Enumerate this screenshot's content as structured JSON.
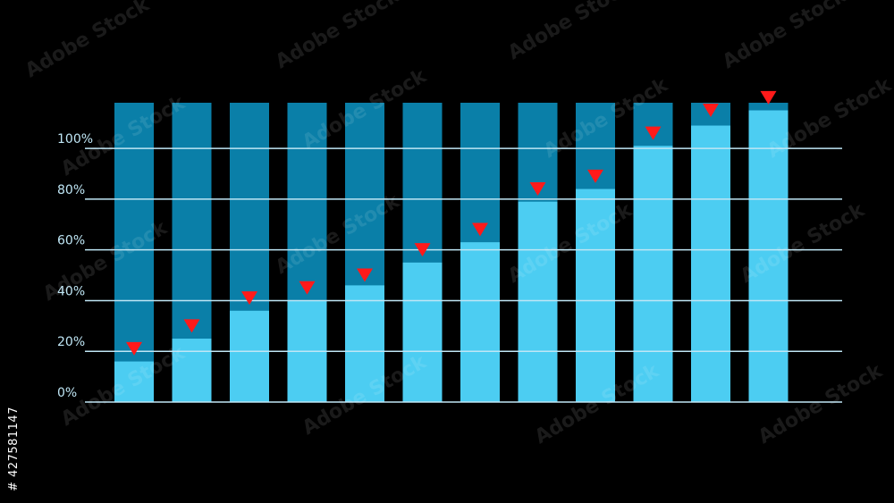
{
  "chart_data": {
    "type": "bar",
    "categories": [
      "",
      "",
      "",
      "",
      "",
      "",
      "",
      "",
      "",
      "",
      "",
      ""
    ],
    "values": [
      16,
      25,
      36,
      40,
      46,
      55,
      63,
      79,
      84,
      101,
      109,
      115
    ],
    "markers": [
      21,
      30,
      41,
      45,
      50,
      60,
      68,
      84,
      89,
      106,
      115,
      120
    ],
    "background_max": 118,
    "ylim": [
      0,
      118
    ],
    "yticks": [
      0,
      20,
      40,
      60,
      80,
      100
    ],
    "ytick_labels": [
      "0%",
      "20%",
      "40%",
      "60%",
      "80%",
      "100%"
    ],
    "title": "",
    "xlabel": "",
    "ylabel": "",
    "grid": true,
    "colors": {
      "background": "#000000",
      "bar_back": "#0a7fa8",
      "bar_front": "#4ccdf2",
      "marker": "#ff1a1a",
      "grid": "#bfe6f5"
    }
  },
  "watermark": {
    "stock_id": "# 427581147",
    "brand": "Adobe Stock"
  }
}
